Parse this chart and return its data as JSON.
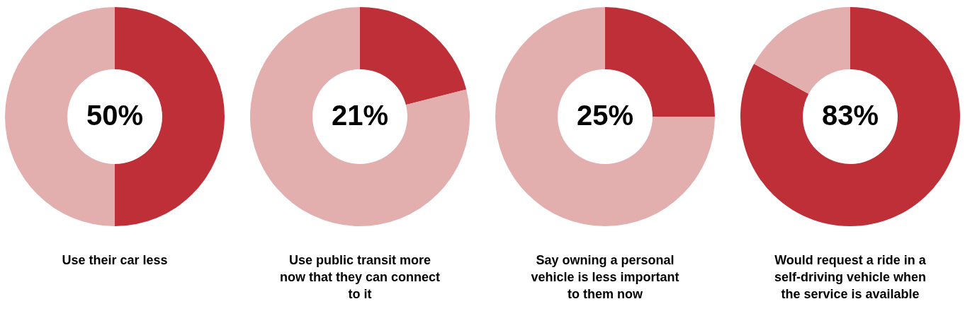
{
  "chart_data": [
    {
      "type": "donut",
      "title": "Use their car less",
      "categories": [
        null,
        null
      ],
      "values": [
        50,
        50
      ],
      "colors": [
        "#be2f37",
        "#e2aeae"
      ],
      "value_labels": [
        "50%",
        null
      ]
    },
    {
      "type": "donut",
      "title": "Use public transit more\nnow that they can connect\nto it",
      "categories": [
        null,
        null
      ],
      "values": [
        21,
        79
      ],
      "colors": [
        "#be2f37",
        "#e2aeae"
      ],
      "value_labels": [
        "21%",
        null
      ]
    },
    {
      "type": "donut",
      "title": "Say owning a personal\nvehicle is less important\nto them now",
      "categories": [
        null,
        null
      ],
      "values": [
        25,
        75
      ],
      "colors": [
        "#be2f37",
        "#e2aeae"
      ],
      "value_labels": [
        "25%",
        null
      ]
    },
    {
      "type": "donut",
      "title": "Would request a ride in a\nself-driving vehicle when\nthe service is available",
      "categories": [
        null,
        null
      ],
      "values": [
        83,
        17
      ],
      "colors": [
        "#be2f37",
        "#e2aeae"
      ],
      "value_labels": [
        "83%",
        null
      ]
    }
  ]
}
